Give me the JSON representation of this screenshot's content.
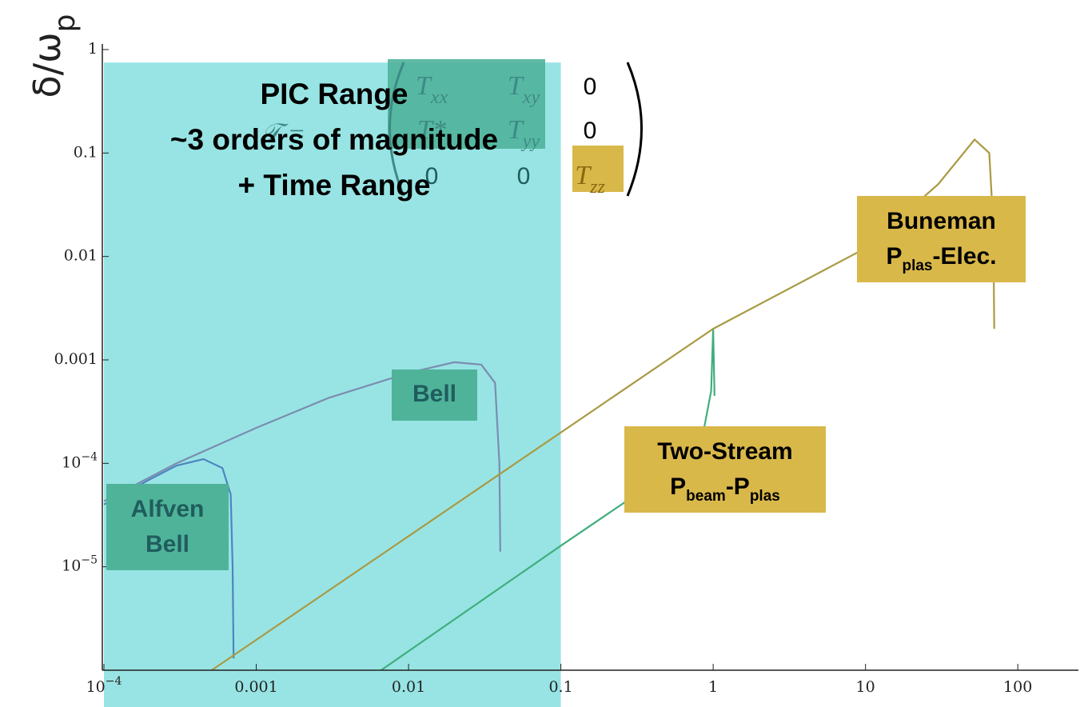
{
  "chart_data": {
    "type": "line",
    "ylabel": "δ/ω",
    "ylabel_sub": "p",
    "xlog": true,
    "ylog": true,
    "xlim": [
      0.0001,
      250
    ],
    "ylim": [
      1e-06,
      1
    ],
    "xticks": [
      {
        "value": 0.0001,
        "label": "10",
        "exponent": "−4"
      },
      0.001,
      0.01,
      0.1,
      1,
      10,
      100
    ],
    "yticks": [
      1,
      0.1,
      0.01,
      0.001,
      {
        "value": 0.0001,
        "label": "10",
        "exponent": "−4"
      },
      {
        "value": 1e-05,
        "label": "10",
        "exponent": "−5"
      }
    ],
    "series": [
      {
        "color": "#4d86c0",
        "x": [
          0.0001,
          0.0002,
          0.0003,
          0.00045,
          0.0006,
          0.00068,
          0.0007,
          0.00071
        ],
        "values": [
          4e-05,
          7e-05,
          9.5e-05,
          0.00011,
          9e-05,
          5e-05,
          1e-05,
          1.3e-06
        ]
      },
      {
        "color": "#7b8db0",
        "x": [
          0.0001,
          0.0003,
          0.001,
          0.003,
          0.01,
          0.02,
          0.03,
          0.037,
          0.0395,
          0.04
        ],
        "values": [
          4.3e-05,
          0.0001,
          0.00022,
          0.00043,
          0.00075,
          0.00095,
          0.0009,
          0.0006,
          0.0001,
          1.4e-05
        ]
      },
      {
        "color": "#3fae7d",
        "x": [
          0.0066,
          0.1,
          0.5,
          0.85,
          0.97,
          1.0,
          1.01,
          1.02
        ],
        "values": [
          1e-06,
          1.6e-05,
          8e-05,
          0.00018,
          0.0005,
          0.002,
          0.001,
          0.00045
        ]
      },
      {
        "color": "#a99a44",
        "x": [
          0.00051,
          1,
          10,
          30,
          52,
          65,
          69,
          70
        ],
        "values": [
          1e-06,
          0.002,
          0.012,
          0.05,
          0.135,
          0.1,
          0.02,
          0.002
        ]
      }
    ],
    "pic_range": {
      "x": [
        0.0001,
        0.1
      ],
      "top": 0.75,
      "color": "#98e4e4",
      "lines": [
        "PIC Range",
        "~3 orders of magnitude",
        "+ Time Range"
      ]
    },
    "matrix": {
      "symbol": "𝒯 =",
      "rows": [
        [
          [
            "T",
            "xx"
          ],
          [
            "T",
            "xy"
          ],
          [
            "0"
          ]
        ],
        [
          [
            "T*"
          ],
          [
            "T",
            "yy"
          ],
          [
            "0"
          ]
        ],
        [
          [
            "0"
          ],
          [
            "0"
          ],
          [
            "T",
            "zz"
          ]
        ]
      ]
    },
    "labels": [
      {
        "color": "#4fb39a",
        "text_color": "#1f5d5d",
        "lines": [
          [
            "Alfven"
          ],
          [
            "Bell"
          ]
        ]
      },
      {
        "color": "#4fb39a",
        "text_color": "#1f5d5d",
        "lines": [
          [
            "Bell"
          ]
        ]
      },
      {
        "color": "#d9b84a",
        "text_color": "#000000",
        "lines": [
          [
            "Two-Stream"
          ],
          [
            "P",
            "beam",
            "-P",
            "plas"
          ]
        ]
      },
      {
        "color": "#d9b84a",
        "text_color": "#000000",
        "lines": [
          [
            "Buneman"
          ],
          [
            "P",
            "plas",
            "-Elec."
          ]
        ]
      }
    ]
  }
}
